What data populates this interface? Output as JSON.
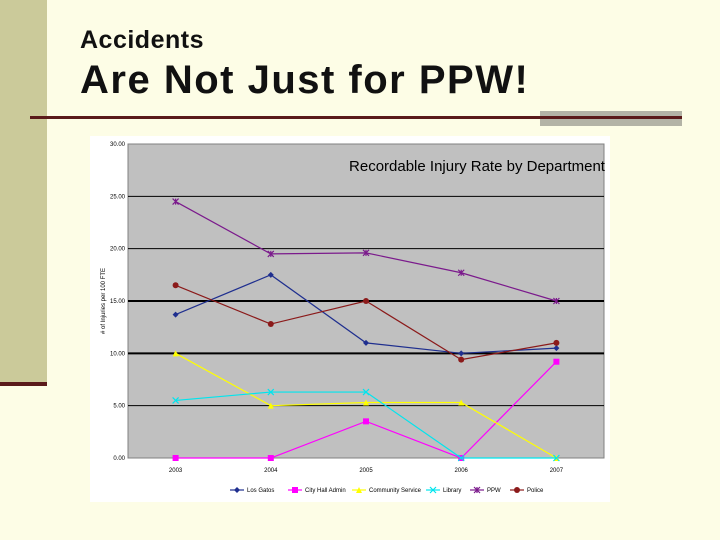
{
  "slide": {
    "subtitle": "Accidents",
    "title": "Are Not Just for PPW!"
  },
  "chart_data": {
    "type": "line",
    "title": "Recordable Injury Rate by Department",
    "ylabel": "# of Injuries per 100 FTE",
    "xlabel": "",
    "ylim": [
      0,
      30
    ],
    "yticks": [
      0,
      5,
      10,
      15,
      20,
      25,
      30
    ],
    "ytick_labels": [
      "0.00",
      "5.00",
      "10.00",
      "15.00",
      "20.00",
      "25.00",
      "30.00"
    ],
    "categories": [
      "2003",
      "2004",
      "2005",
      "2006",
      "2007"
    ],
    "grid": true,
    "legend_position": "bottom",
    "series": [
      {
        "name": "Los Gatos",
        "values": [
          13.7,
          17.5,
          11.0,
          10.0,
          10.5
        ],
        "color": "#1f2f8f",
        "marker": "diamond"
      },
      {
        "name": "City Hall Admin",
        "values": [
          0.0,
          0.0,
          3.5,
          0.0,
          9.2
        ],
        "color": "#ff00ff",
        "marker": "square"
      },
      {
        "name": "Community Service",
        "values": [
          10.0,
          5.0,
          5.3,
          5.3,
          0.0
        ],
        "color": "#ffff00",
        "marker": "triangle"
      },
      {
        "name": "Library",
        "values": [
          5.5,
          6.3,
          6.3,
          0.0,
          0.0
        ],
        "color": "#00e5ee",
        "marker": "x"
      },
      {
        "name": "PPW",
        "values": [
          24.5,
          19.5,
          19.6,
          17.7,
          15.0
        ],
        "color": "#7b1a8c",
        "marker": "star"
      },
      {
        "name": "Police",
        "values": [
          16.5,
          12.8,
          15.0,
          9.4,
          11.0
        ],
        "color": "#8b1a1a",
        "marker": "circle"
      }
    ]
  }
}
